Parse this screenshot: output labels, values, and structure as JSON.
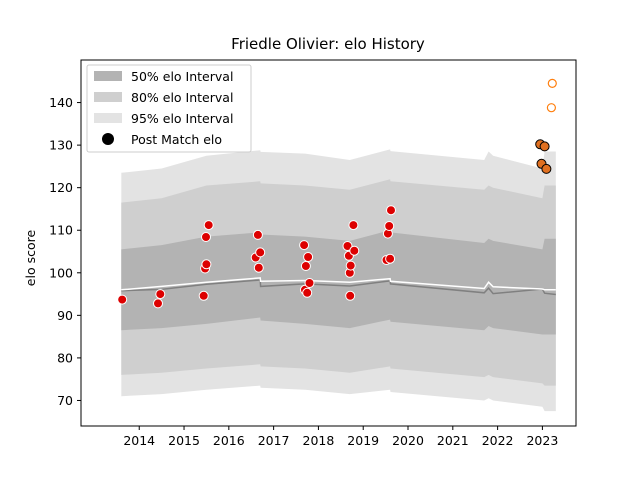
{
  "chart_data": {
    "type": "line",
    "title": "Friedle Olivier: elo History",
    "xlabel": "",
    "ylabel": "elo score",
    "xlim": [
      2012.7,
      2023.75
    ],
    "ylim": [
      64,
      150
    ],
    "x_ticks": [
      2014,
      2015,
      2016,
      2017,
      2018,
      2019,
      2020,
      2021,
      2022,
      2023
    ],
    "y_ticks": [
      70,
      80,
      90,
      100,
      110,
      120,
      130,
      140
    ],
    "legend": {
      "position": "top-left",
      "entries": [
        "50% elo Interval",
        "80% elo Interval",
        "95% elo Interval",
        "Post Match elo"
      ]
    },
    "colors": {
      "band50": "#b3b3b3",
      "band80": "#cfcfcf",
      "band95": "#e3e3e3",
      "mean_line": "#ffffff",
      "median_line": "#808080",
      "post_match_fill": "#dd0000",
      "recent_fill": "#e07020",
      "future_edge": "#ff7f0e"
    },
    "bands": {
      "x": [
        2013.6,
        2014.5,
        2015.5,
        2016.7,
        2016.71,
        2017.7,
        2018.7,
        2019.6,
        2019.61,
        2021.7,
        2021.8,
        2021.9,
        2023.0,
        2023.05,
        2023.3
      ],
      "p95_hi": [
        123.5,
        124.5,
        127.5,
        128.8,
        128.4,
        128.0,
        126.5,
        129.0,
        128.6,
        126.5,
        128.5,
        127.5,
        124.5,
        128.5,
        128.5
      ],
      "p80_hi": [
        116.5,
        117.5,
        120.5,
        121.5,
        121.0,
        120.5,
        119.5,
        122.0,
        121.5,
        119.5,
        120.5,
        120.0,
        117.5,
        120.5,
        120.5
      ],
      "p50_hi": [
        105.5,
        106.5,
        108.5,
        109.5,
        109.0,
        108.5,
        107.5,
        110.0,
        109.5,
        107.0,
        108.0,
        107.5,
        105.5,
        108.0,
        108.0
      ],
      "p50_lo": [
        86.5,
        87.0,
        88.0,
        89.5,
        88.8,
        88.0,
        87.0,
        89.0,
        88.5,
        86.5,
        87.5,
        87.0,
        85.5,
        85.5,
        85.5
      ],
      "p80_lo": [
        76.0,
        76.5,
        77.5,
        78.5,
        78.0,
        77.5,
        76.5,
        78.0,
        77.5,
        75.5,
        76.0,
        75.5,
        74.0,
        73.5,
        73.5
      ],
      "p95_lo": [
        71.0,
        71.5,
        72.5,
        73.5,
        73.0,
        72.5,
        71.5,
        72.5,
        72.0,
        70.0,
        70.5,
        70.0,
        68.5,
        67.5,
        67.5
      ],
      "mean": [
        96.0,
        96.8,
        97.8,
        98.8,
        98.0,
        98.2,
        97.8,
        98.6,
        98.0,
        96.3,
        97.8,
        96.7,
        96.2,
        96.0,
        96.0
      ],
      "median": [
        95.8,
        96.1,
        97.3,
        98.3,
        96.8,
        97.4,
        96.9,
        98.1,
        97.4,
        95.3,
        96.4,
        95.1,
        96.2,
        95.2,
        94.9
      ]
    },
    "post_match": {
      "x": [
        2013.62,
        2014.42,
        2014.47,
        2015.44,
        2015.47,
        2015.49,
        2015.5,
        2015.55,
        2016.6,
        2016.65,
        2016.67,
        2016.7,
        2017.68,
        2017.7,
        2017.72,
        2017.75,
        2017.77,
        2017.8,
        2018.65,
        2018.68,
        2018.7,
        2018.71,
        2018.72,
        2018.78,
        2018.8,
        2019.52,
        2019.55,
        2019.58,
        2019.6,
        2019.62
      ],
      "y": [
        93.7,
        92.8,
        95.0,
        94.6,
        101.0,
        108.4,
        102.0,
        111.2,
        103.6,
        108.9,
        101.2,
        104.8,
        106.5,
        96.0,
        101.6,
        95.3,
        103.7,
        97.6,
        106.3,
        104.0,
        100.0,
        94.6,
        101.7,
        111.2,
        105.2,
        103.0,
        109.2,
        111.0,
        103.3,
        114.7
      ]
    },
    "recent_matches": {
      "x": [
        2022.95,
        2022.98,
        2023.05,
        2023.09
      ],
      "y": [
        130.2,
        125.6,
        129.7,
        124.4
      ]
    },
    "future_estimates": {
      "x": [
        2023.22,
        2023.2
      ],
      "y": [
        144.5,
        138.8
      ]
    }
  }
}
